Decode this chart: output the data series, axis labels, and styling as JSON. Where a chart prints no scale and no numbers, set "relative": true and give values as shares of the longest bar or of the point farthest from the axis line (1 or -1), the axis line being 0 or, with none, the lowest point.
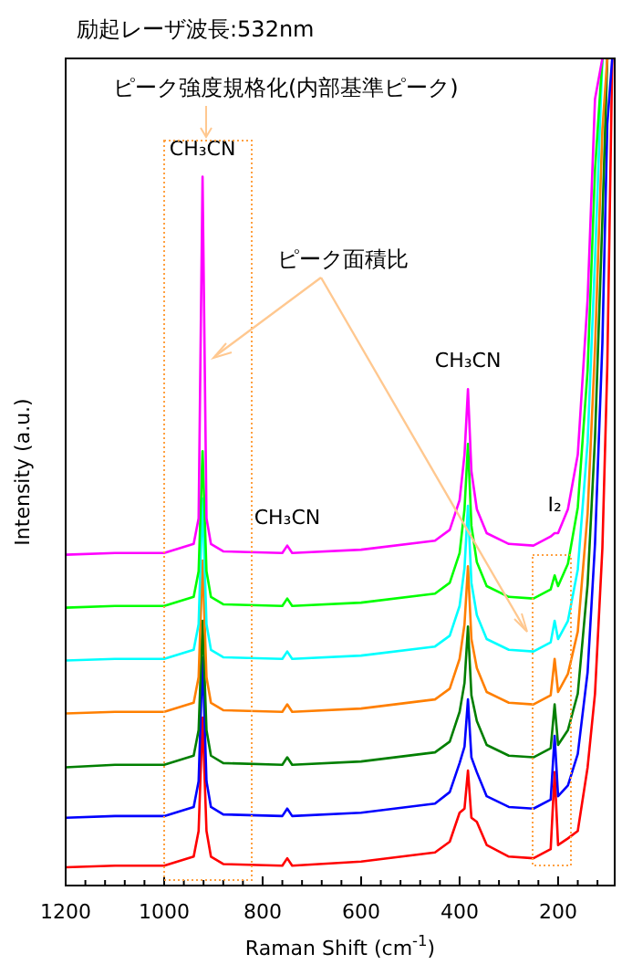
{
  "chart_data": {
    "type": "line",
    "title": "励起レーザ波長:532nm",
    "xlabel": "Raman Shift (cm$^{-1}$)",
    "ylabel": "Intensity (a.u.)",
    "relative": true,
    "x": [
      1200,
      1100,
      1000,
      940,
      930,
      922,
      914,
      905,
      880,
      760,
      750,
      740,
      600,
      450,
      420,
      400,
      390,
      383,
      376,
      365,
      345,
      300,
      250,
      215,
      207,
      200,
      180,
      160,
      140,
      125,
      110,
      100,
      90
    ],
    "xlim": [
      1200,
      85
    ],
    "xticks": [
      1200,
      {
        "value": 1160,
        "label": null
      },
      {
        "value": 1120,
        "label": null
      },
      {
        "value": 1080,
        "label": null
      },
      {
        "value": 1040,
        "label": null
      },
      1000,
      {
        "value": 960,
        "label": null
      },
      {
        "value": 920,
        "label": null
      },
      {
        "value": 880,
        "label": null
      },
      {
        "value": 840,
        "label": null
      },
      800,
      {
        "value": 760,
        "label": null
      },
      {
        "value": 720,
        "label": null
      },
      {
        "value": 680,
        "label": null
      },
      {
        "value": 640,
        "label": null
      },
      600,
      {
        "value": 560,
        "label": null
      },
      {
        "value": 520,
        "label": null
      },
      {
        "value": 480,
        "label": null
      },
      {
        "value": 440,
        "label": null
      },
      400,
      {
        "value": 360,
        "label": null
      },
      {
        "value": 320,
        "label": null
      },
      {
        "value": 280,
        "label": null
      },
      {
        "value": 240,
        "label": null
      },
      200,
      {
        "value": 160,
        "label": null
      },
      {
        "value": 120,
        "label": null
      }
    ],
    "series": [
      {
        "color": "#ff0000",
        "values": [
          0.022,
          0.024,
          0.024,
          0.035,
          0.066,
          0.203,
          0.066,
          0.035,
          0.026,
          0.024,
          0.033,
          0.024,
          0.029,
          0.04,
          0.053,
          0.088,
          0.093,
          0.139,
          0.082,
          0.077,
          0.049,
          0.035,
          0.033,
          0.044,
          0.137,
          0.049,
          0.057,
          0.066,
          0.143,
          0.232,
          0.408,
          0.629,
          1
        ]
      },
      {
        "color": "#0000ff",
        "values": [
          0.082,
          0.084,
          0.084,
          0.095,
          0.126,
          0.276,
          0.126,
          0.095,
          0.086,
          0.084,
          0.093,
          0.084,
          0.088,
          0.099,
          0.113,
          0.148,
          0.168,
          0.225,
          0.155,
          0.137,
          0.108,
          0.095,
          0.093,
          0.104,
          0.181,
          0.108,
          0.121,
          0.159,
          0.258,
          0.413,
          0.656,
          0.921,
          1
        ]
      },
      {
        "color": "#007f00",
        "values": [
          0.143,
          0.146,
          0.146,
          0.157,
          0.188,
          0.32,
          0.188,
          0.157,
          0.148,
          0.146,
          0.155,
          0.146,
          0.15,
          0.161,
          0.174,
          0.21,
          0.245,
          0.313,
          0.23,
          0.199,
          0.17,
          0.157,
          0.155,
          0.166,
          0.219,
          0.17,
          0.188,
          0.232,
          0.364,
          0.541,
          0.806,
          1,
          null
        ]
      },
      {
        "color": "#ff7f00",
        "values": [
          0.208,
          0.21,
          0.21,
          0.221,
          0.252,
          0.393,
          0.252,
          0.221,
          0.212,
          0.21,
          0.219,
          0.21,
          0.214,
          0.225,
          0.238,
          0.274,
          0.316,
          0.386,
          0.298,
          0.263,
          0.234,
          0.221,
          0.219,
          0.23,
          0.274,
          0.234,
          0.256,
          0.307,
          0.45,
          0.649,
          0.914,
          1,
          null
        ]
      },
      {
        "color": "#00ffff",
        "values": [
          0.272,
          0.274,
          0.274,
          0.285,
          0.316,
          0.468,
          0.316,
          0.285,
          0.276,
          0.274,
          0.283,
          0.274,
          0.278,
          0.289,
          0.302,
          0.338,
          0.384,
          0.459,
          0.366,
          0.327,
          0.298,
          0.285,
          0.283,
          0.294,
          0.32,
          0.298,
          0.32,
          0.382,
          0.536,
          0.757,
          1,
          null,
          null
        ]
      },
      {
        "color": "#00ff00",
        "values": [
          0.336,
          0.338,
          0.338,
          0.349,
          0.38,
          0.525,
          0.38,
          0.349,
          0.34,
          0.338,
          0.347,
          0.338,
          0.342,
          0.353,
          0.366,
          0.402,
          0.455,
          0.534,
          0.435,
          0.391,
          0.362,
          0.349,
          0.347,
          0.358,
          0.375,
          0.362,
          0.389,
          0.457,
          0.623,
          0.865,
          1,
          null,
          null
        ]
      },
      {
        "color": "#ff00ff",
        "values": [
          0.4,
          0.402,
          0.402,
          0.413,
          0.444,
          0.857,
          0.444,
          0.413,
          0.404,
          0.402,
          0.411,
          0.402,
          0.406,
          0.417,
          0.43,
          0.466,
          0.521,
          0.6,
          0.501,
          0.455,
          0.426,
          0.413,
          0.411,
          0.422,
          0.426,
          0.426,
          0.455,
          0.521,
          0.709,
          0.951,
          1,
          null,
          null
        ]
      }
    ],
    "annotations": [
      "ピーク強度規格化(内部基準ピーク)",
      "ピーク面積比",
      {
        "text": "CH₃CN",
        "x": 922,
        "y": 0.857
      },
      {
        "text": "CH₃CN",
        "x": 750,
        "y": 0.411
      },
      {
        "text": "CH₃CN",
        "x": 383,
        "y": 0.6
      },
      {
        "text": "I₂",
        "x": 207,
        "y": 0.426
      }
    ]
  }
}
